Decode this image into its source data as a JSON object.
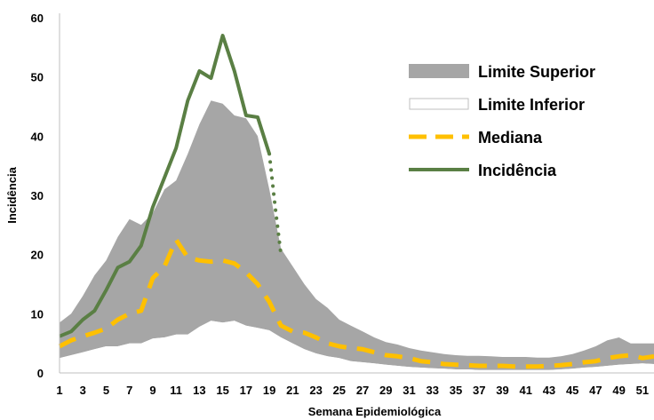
{
  "chart_data": {
    "type": "line",
    "xlabel": "Semana Epidemiológica",
    "ylabel": "Incidência",
    "ylim": [
      0,
      60
    ],
    "yticks": [
      0,
      10,
      20,
      30,
      40,
      50,
      60
    ],
    "xticks": [
      1,
      3,
      5,
      7,
      9,
      11,
      13,
      15,
      17,
      19,
      21,
      23,
      25,
      27,
      29,
      31,
      33,
      35,
      37,
      39,
      41,
      43,
      45,
      47,
      49,
      51
    ],
    "xlim": [
      1,
      52
    ],
    "grid": false,
    "legend_placement": "top-right",
    "colors": {
      "upper": "#a6a6a6",
      "lower": "#ffffff",
      "median": "#ffc000",
      "incidence": "#5a7f44"
    },
    "series": [
      {
        "name": "Limite Superior",
        "style": "band-upper",
        "x": [
          1,
          2,
          3,
          4,
          5,
          6,
          7,
          8,
          9,
          10,
          11,
          12,
          13,
          14,
          15,
          16,
          17,
          18,
          19,
          20,
          21,
          22,
          23,
          24,
          25,
          26,
          27,
          28,
          29,
          30,
          31,
          32,
          33,
          34,
          35,
          36,
          37,
          38,
          39,
          40,
          41,
          42,
          43,
          44,
          45,
          46,
          47,
          48,
          49,
          50,
          51,
          52
        ],
        "values": [
          8.5,
          10,
          13,
          16.5,
          19,
          23,
          26,
          25,
          27,
          31,
          32.5,
          37,
          42,
          46,
          45.5,
          43.5,
          43,
          40,
          31,
          21,
          18,
          15,
          12.5,
          11,
          9,
          8,
          7,
          6,
          5.2,
          4.8,
          4.2,
          3.8,
          3.5,
          3.2,
          3,
          2.9,
          2.9,
          2.8,
          2.7,
          2.7,
          2.7,
          2.6,
          2.6,
          2.8,
          3.2,
          3.8,
          4.5,
          5.5,
          6,
          5,
          5,
          5
        ]
      },
      {
        "name": "Limite Inferior",
        "style": "band-lower",
        "x": [
          1,
          2,
          3,
          4,
          5,
          6,
          7,
          8,
          9,
          10,
          11,
          12,
          13,
          14,
          15,
          16,
          17,
          18,
          19,
          20,
          21,
          22,
          23,
          24,
          25,
          26,
          27,
          28,
          29,
          30,
          31,
          32,
          33,
          34,
          35,
          36,
          37,
          38,
          39,
          40,
          41,
          42,
          43,
          44,
          45,
          46,
          47,
          48,
          49,
          50,
          51,
          52
        ],
        "values": [
          2.5,
          3,
          3.5,
          4,
          4.5,
          4.5,
          5,
          5,
          5.8,
          6,
          6.5,
          6.5,
          7.8,
          8.8,
          8.5,
          8.8,
          8,
          7.6,
          7.2,
          6,
          5,
          4,
          3.3,
          2.8,
          2.5,
          2,
          1.8,
          1.6,
          1.4,
          1.2,
          1,
          0.9,
          0.8,
          0.7,
          0.6,
          0.6,
          0.5,
          0.5,
          0.5,
          0.5,
          0.5,
          0.5,
          0.5,
          0.6,
          0.7,
          0.9,
          1,
          1.2,
          1.4,
          1.5,
          1.6,
          1.5
        ]
      },
      {
        "name": "Mediana",
        "style": "dashed",
        "x": [
          1,
          2,
          3,
          4,
          5,
          6,
          7,
          8,
          9,
          10,
          11,
          12,
          13,
          14,
          15,
          16,
          17,
          18,
          19,
          20,
          21,
          22,
          23,
          24,
          25,
          26,
          27,
          28,
          29,
          30,
          31,
          32,
          33,
          34,
          35,
          36,
          37,
          38,
          39,
          40,
          41,
          42,
          43,
          44,
          45,
          46,
          47,
          48,
          49,
          50,
          51,
          52
        ],
        "values": [
          4.5,
          5.5,
          6.2,
          6.8,
          7.5,
          9,
          10,
          10.5,
          16,
          18,
          22.5,
          19.5,
          19,
          18.8,
          19,
          18.5,
          17,
          15,
          12,
          8,
          7,
          6.8,
          6,
          5,
          4.5,
          4.2,
          4,
          3.5,
          3,
          2.8,
          2.5,
          2,
          1.8,
          1.5,
          1.4,
          1.3,
          1.2,
          1.2,
          1.2,
          1.1,
          1.1,
          1.1,
          1.2,
          1.3,
          1.5,
          1.8,
          2,
          2.5,
          2.8,
          3,
          2.5,
          2.8
        ]
      },
      {
        "name": "Incidência",
        "style": "solid",
        "x": [
          1,
          2,
          3,
          4,
          5,
          6,
          7,
          8,
          9,
          10,
          11,
          12,
          13,
          14,
          15,
          16,
          17,
          18,
          19
        ],
        "values": [
          6.2,
          7,
          9,
          10.5,
          14,
          17.8,
          18.8,
          21.5,
          28,
          33,
          38,
          46,
          51,
          49.8,
          57,
          51,
          43.5,
          43.2,
          37
        ]
      },
      {
        "name": "",
        "style": "dotted",
        "x": [
          19,
          19.5,
          20
        ],
        "values": [
          37,
          28,
          20
        ]
      }
    ],
    "legend": [
      {
        "label": "Limite Superior",
        "style": "band-upper"
      },
      {
        "label": "Limite Inferior",
        "style": "band-lower"
      },
      {
        "label": "Mediana",
        "style": "dashed"
      },
      {
        "label": "Incidência",
        "style": "solid"
      }
    ]
  }
}
